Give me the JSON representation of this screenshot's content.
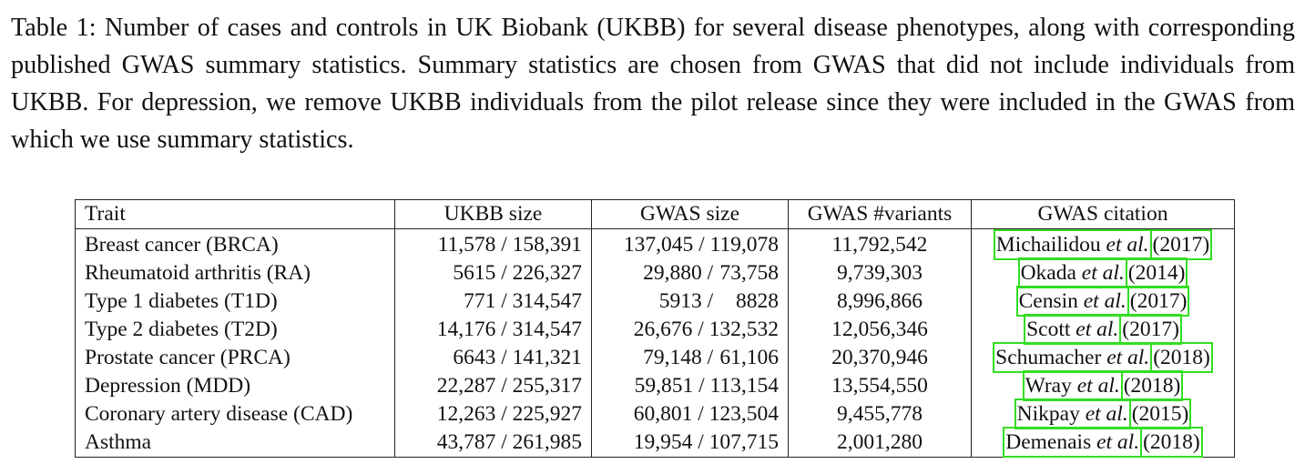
{
  "caption": "Table 1: Number of cases and controls in UK Biobank (UKBB) for several disease phenotypes, along with corresponding published GWAS summary statistics.  Summary statistics are chosen from GWAS that did not include individuals from UKBB. For depression, we remove UKBB individuals from the pilot release since they were included in the GWAS from which we use summary statistics.",
  "headers": {
    "trait": "Trait",
    "ukbb": "UKBB size",
    "gwas": "GWAS size",
    "variants": "GWAS #variants",
    "citation": "GWAS citation"
  },
  "rows": [
    {
      "trait": "Breast cancer (BRCA)",
      "ukbb": "11,578 / 158,391",
      "gwas_cases": "137,045 /",
      "gwas_controls": "119,078",
      "variants": "11,792,542",
      "author": "Michailidou",
      "etal": "et al.",
      "year": "(2017)"
    },
    {
      "trait": "Rheumatoid arthritis (RA)",
      "ukbb": "5615 / 226,327",
      "gwas_cases": "29,880 /",
      "gwas_controls": "73,758",
      "variants": "9,739,303",
      "author": "Okada",
      "etal": "et al.",
      "year": "(2014)"
    },
    {
      "trait": "Type 1 diabetes (T1D)",
      "ukbb": "771 / 314,547",
      "gwas_cases": "5913 /",
      "gwas_controls": "8828",
      "variants": "8,996,866",
      "author": "Censin",
      "etal": "et al.",
      "year": "(2017)"
    },
    {
      "trait": "Type 2 diabetes (T2D)",
      "ukbb": "14,176 / 314,547",
      "gwas_cases": "26,676 /",
      "gwas_controls": "132,532",
      "variants": "12,056,346",
      "author": "Scott",
      "etal": "et al.",
      "year": "(2017)"
    },
    {
      "trait": "Prostate cancer (PRCA)",
      "ukbb": "6643 / 141,321",
      "gwas_cases": "79,148 /",
      "gwas_controls": "61,106",
      "variants": "20,370,946",
      "author": "Schumacher",
      "etal": "et al.",
      "year": "(2018)"
    },
    {
      "trait": "Depression (MDD)",
      "ukbb": "22,287 / 255,317",
      "gwas_cases": "59,851 /",
      "gwas_controls": "113,154",
      "variants": "13,554,550",
      "author": "Wray",
      "etal": "et al.",
      "year": "(2018)"
    },
    {
      "trait": "Coronary artery disease (CAD)",
      "ukbb": "12,263 / 225,927",
      "gwas_cases": "60,801 /",
      "gwas_controls": "123,504",
      "variants": "9,455,778",
      "author": "Nikpay",
      "etal": "et al.",
      "year": "(2015)"
    },
    {
      "trait": "Asthma",
      "ukbb": "43,787 / 261,985",
      "gwas_cases": "19,954 /",
      "gwas_controls": "107,715",
      "variants": "2,001,280",
      "author": "Demenais",
      "etal": "et al.",
      "year": "(2018)"
    }
  ],
  "colors": {
    "highlight_box": "#33dd22",
    "text": "#111111"
  }
}
